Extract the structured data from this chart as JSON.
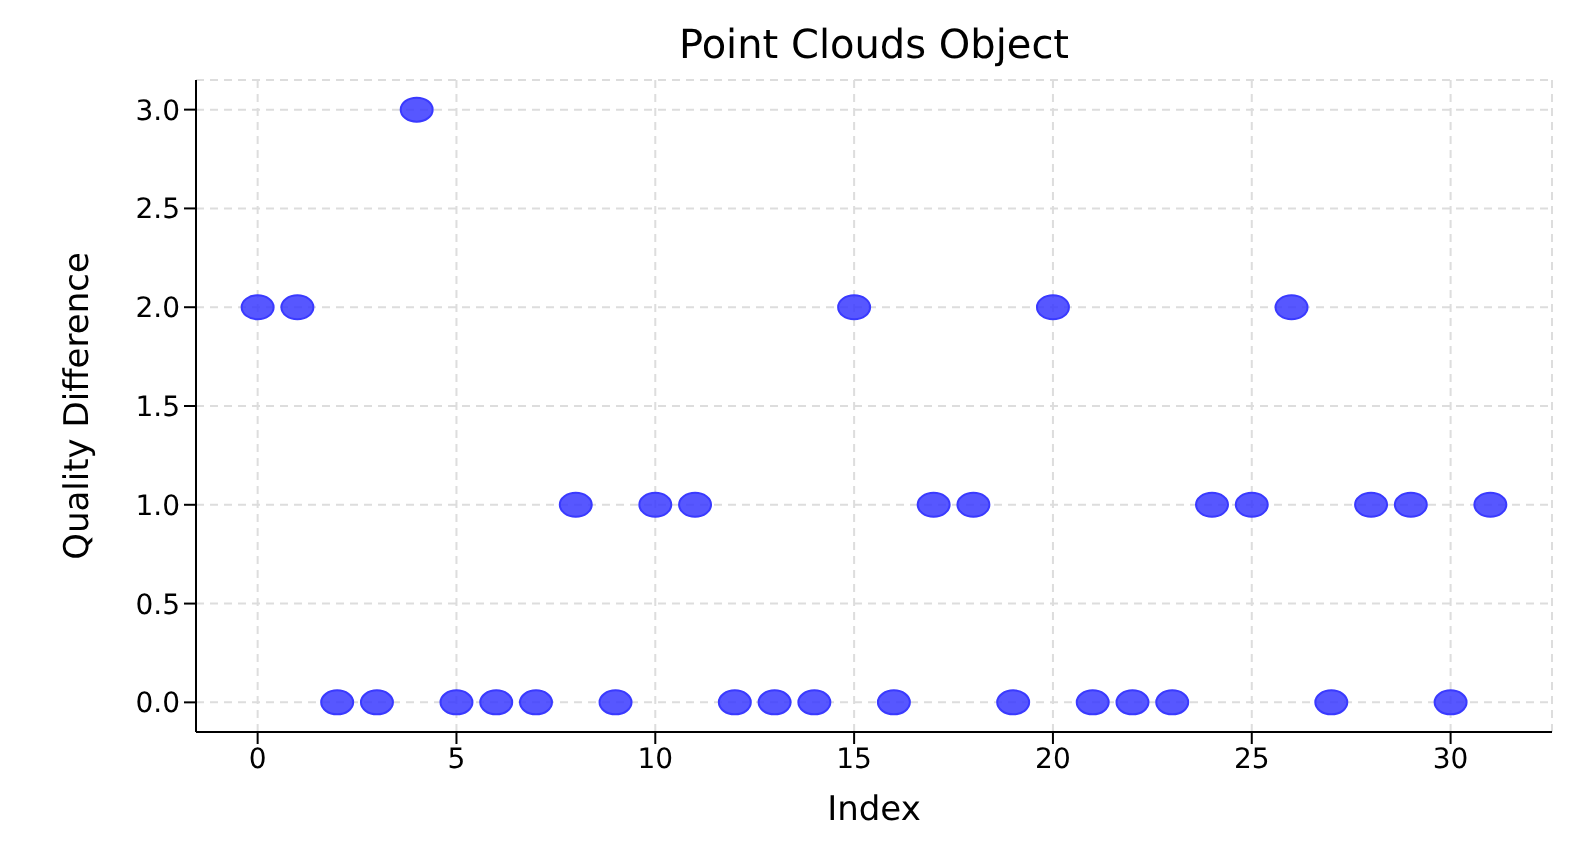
{
  "chart_data": {
    "type": "scatter",
    "title": "Point Clouds Object",
    "xlabel": "Index",
    "ylabel": "Quality Difference",
    "x": [
      0,
      1,
      2,
      3,
      4,
      5,
      6,
      7,
      8,
      9,
      10,
      11,
      12,
      13,
      14,
      15,
      16,
      17,
      18,
      19,
      20,
      21,
      22,
      23,
      24,
      25,
      26,
      27,
      28,
      29,
      30,
      31
    ],
    "series": [
      {
        "color": "#3a3aff",
        "values": [
          2,
          2,
          0,
          0,
          3,
          0,
          0,
          0,
          1,
          0,
          1,
          1,
          0,
          0,
          0,
          2,
          0,
          1,
          1,
          0,
          2,
          0,
          0,
          0,
          1,
          1,
          2,
          0,
          1,
          1,
          0,
          1
        ]
      }
    ],
    "xlim": [
      -1.55,
      32.55
    ],
    "xticks": [
      0,
      5,
      10,
      15,
      20,
      25,
      30
    ],
    "ylim": [
      -0.15,
      3.15
    ],
    "yticks": [
      {
        "value": 0,
        "label": "0.0"
      },
      {
        "value": 0.5,
        "label": "0.5"
      },
      {
        "value": 1,
        "label": "1.0"
      },
      {
        "value": 1.5,
        "label": "1.5"
      },
      {
        "value": 2,
        "label": "2.0"
      },
      {
        "value": 2.5,
        "label": "2.5"
      },
      {
        "value": 3,
        "label": "3.0"
      }
    ],
    "grid": true,
    "marker": "circle",
    "legend": false
  }
}
